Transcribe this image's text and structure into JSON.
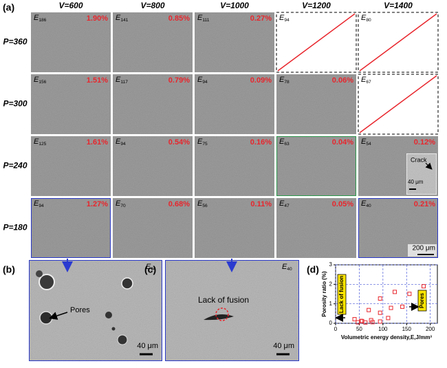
{
  "panel_a": {
    "label": "(a)",
    "columns": [
      "V=600",
      "V=800",
      "V=1000",
      "V=1200",
      "V=1400"
    ],
    "rows": [
      {
        "label": "P=360",
        "cells": [
          {
            "symbol": "E",
            "sub": "186",
            "porosity": "1.90%"
          },
          {
            "symbol": "E",
            "sub": "141",
            "porosity": "0.85%"
          },
          {
            "symbol": "E",
            "sub": "111",
            "porosity": "0.27%"
          },
          {
            "symbol": "E",
            "sub": "94"
          },
          {
            "symbol": "E",
            "sub": "80"
          }
        ]
      },
      {
        "label": "P=300",
        "cells": [
          {
            "symbol": "E",
            "sub": "156",
            "porosity": "1.51%"
          },
          {
            "symbol": "E",
            "sub": "117",
            "porosity": "0.79%"
          },
          {
            "symbol": "E",
            "sub": "94",
            "porosity": "0.09%"
          },
          {
            "symbol": "E",
            "sub": "78",
            "porosity": "0.06%"
          },
          {
            "symbol": "E",
            "sub": "67"
          }
        ]
      },
      {
        "label": "P=240",
        "cells": [
          {
            "symbol": "E",
            "sub": "125",
            "porosity": "1.61%"
          },
          {
            "symbol": "E",
            "sub": "94",
            "porosity": "0.54%"
          },
          {
            "symbol": "E",
            "sub": "75",
            "porosity": "0.16%"
          },
          {
            "symbol": "E",
            "sub": "63",
            "porosity": "0.04%",
            "highlight": "#2e9e4f"
          },
          {
            "symbol": "E",
            "sub": "54",
            "porosity": "0.12%",
            "inset": {
              "label": "Crack",
              "scale": "40 μm"
            }
          }
        ]
      },
      {
        "label": "P=180",
        "cells": [
          {
            "symbol": "E",
            "sub": "94",
            "porosity": "1.27%",
            "highlight": "#2b3bd0"
          },
          {
            "symbol": "E",
            "sub": "70",
            "porosity": "0.68%"
          },
          {
            "symbol": "E",
            "sub": "56",
            "porosity": "0.11%"
          },
          {
            "symbol": "E",
            "sub": "47",
            "porosity": "0.05%"
          },
          {
            "symbol": "E",
            "sub": "40",
            "porosity": "0.21%",
            "highlight": "#2b3bd0",
            "scale": "200 μm"
          }
        ]
      }
    ]
  },
  "panel_b": {
    "label": "(b)",
    "symbol": "E",
    "sub": "94",
    "annotation": "Pores",
    "scale": "40 μm"
  },
  "panel_c": {
    "label": "(c)",
    "symbol": "E",
    "sub": "40",
    "annotation": "Lack of fusion",
    "scale": "40 μm"
  },
  "chart_data": {
    "type": "scatter",
    "label": "(d)",
    "xlabel": "Volumetric energy density,E,J/mm³",
    "ylabel": "Porosity ratio (%)",
    "x": [
      186,
      141,
      111,
      156,
      117,
      94,
      78,
      125,
      94,
      75,
      63,
      54,
      94,
      70,
      56,
      47,
      40
    ],
    "values": [
      1.9,
      0.85,
      0.27,
      1.51,
      0.79,
      0.09,
      0.06,
      1.61,
      0.54,
      0.16,
      0.04,
      0.12,
      1.27,
      0.68,
      0.11,
      0.05,
      0.21
    ],
    "color": "#e8262d",
    "xlim": [
      0,
      215
    ],
    "ylim": [
      0,
      3
    ],
    "xticks": [
      0,
      50,
      100,
      150,
      200
    ],
    "yticks": [
      0,
      1,
      2,
      3
    ],
    "grid": true,
    "annotations": [
      "Lack of fusion",
      "Pores"
    ]
  }
}
